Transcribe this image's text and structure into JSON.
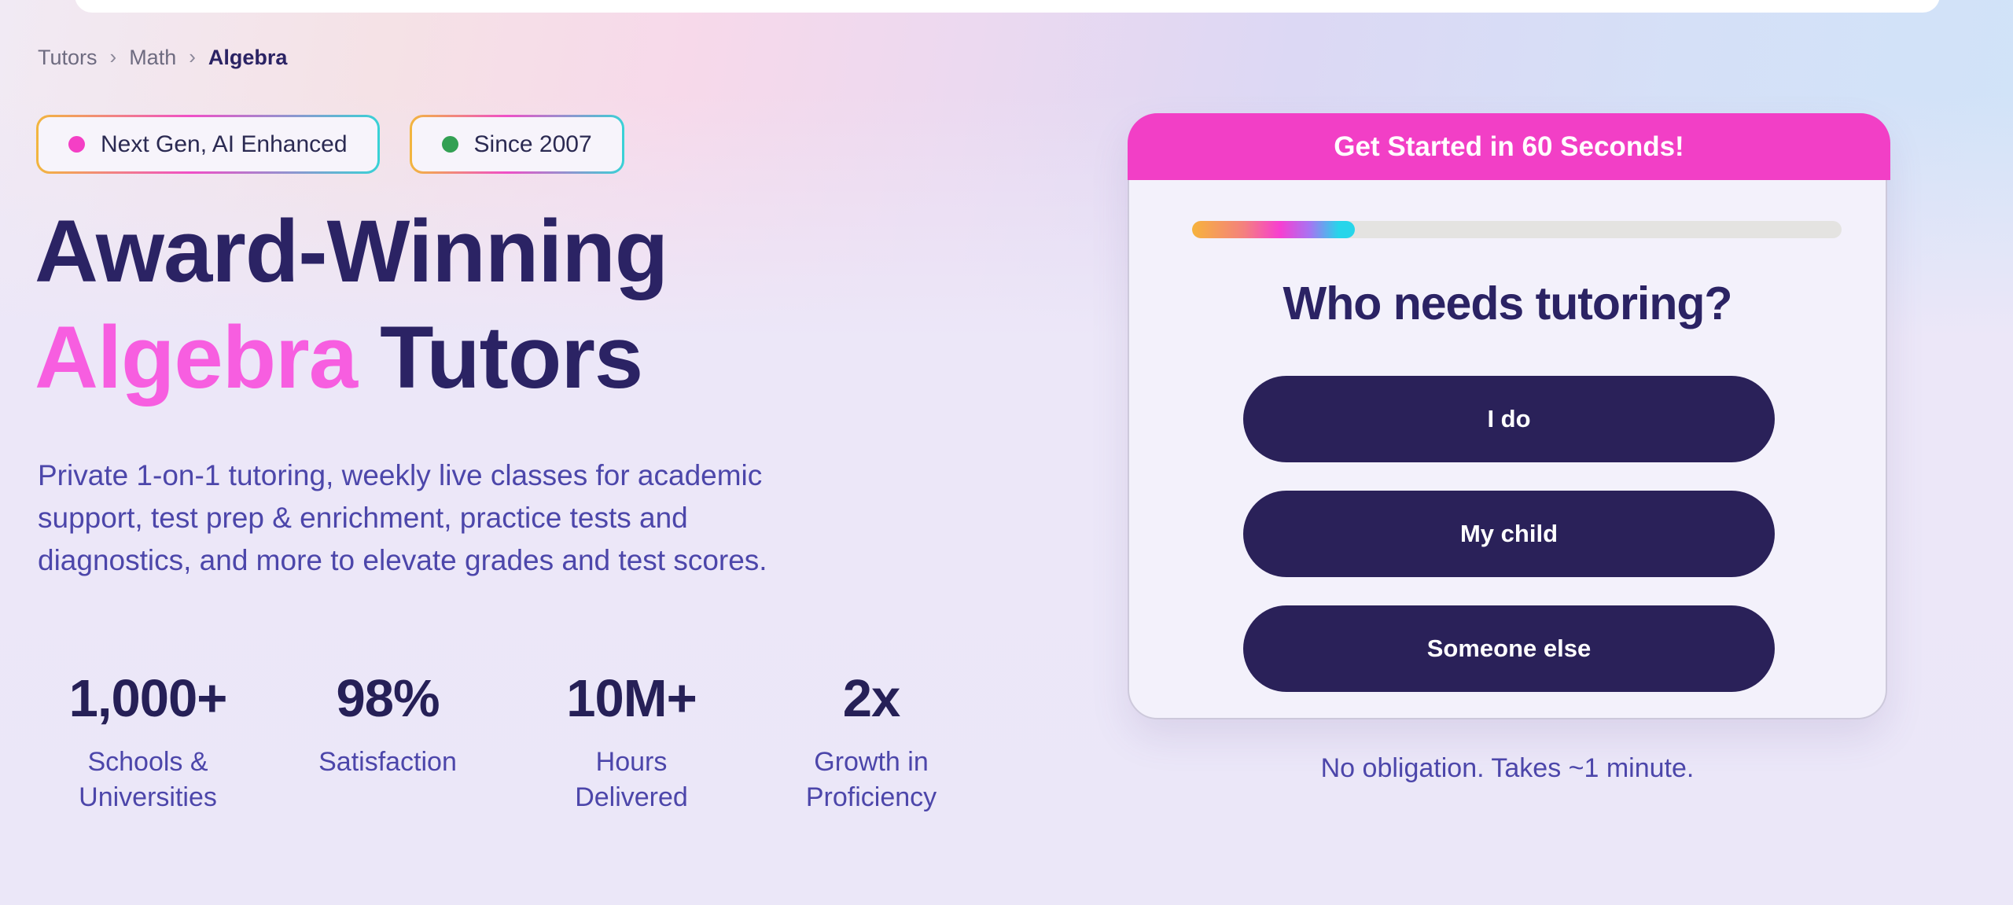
{
  "breadcrumb": {
    "separator": "›",
    "items": [
      "Tutors",
      "Math",
      "Algebra"
    ]
  },
  "badges": [
    {
      "label": "Next Gen, AI Enhanced",
      "dot_color": "#f43fc5"
    },
    {
      "label": "Since 2007",
      "dot_color": "#33a053"
    }
  ],
  "hero": {
    "title_line1": "Award-Winning",
    "title_highlight": "Algebra",
    "title_rest": "Tutors",
    "highlight_color": "#f75ee0",
    "description": "Private 1-on-1 tutoring, weekly live classes for academic\nsupport, test prep & enrichment, practice tests and\ndiagnostics, and more to elevate grades and test scores."
  },
  "stats": [
    {
      "value": "1,000+",
      "label_lines": [
        "Schools &",
        "Universities"
      ]
    },
    {
      "value": "98%",
      "label_lines": [
        "Satisfaction"
      ]
    },
    {
      "value": "10M+",
      "label_lines": [
        "Hours",
        "Delivered"
      ]
    },
    {
      "value": "2x",
      "label_lines": [
        "Growth in",
        "Proficiency"
      ]
    }
  ],
  "form_card": {
    "header": "Get Started in 60 Seconds!",
    "header_color": "#f23fc6",
    "progress_percent": 25,
    "question": "Who needs tutoring?",
    "options": [
      {
        "label": "I do"
      },
      {
        "label": "My child"
      },
      {
        "label": "Someone else"
      }
    ],
    "button_color": "#2a2159",
    "footnote": "No obligation. Takes ~1 minute."
  },
  "colors": {
    "heading_navy": "#2b2364",
    "body_purple": "#4c46aa",
    "accent_pink": "#f23fc6",
    "highlight_pink": "#f75ee0",
    "progress_gradient": [
      "#f6b33c",
      "#f73ed1",
      "#27d5ea"
    ]
  }
}
